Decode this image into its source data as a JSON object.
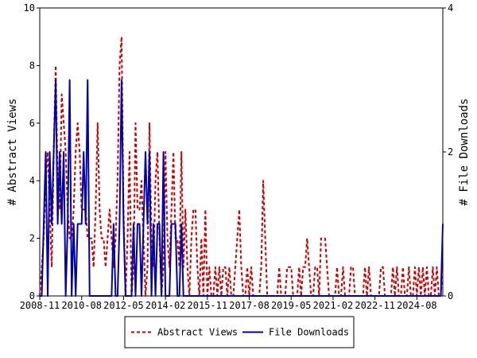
{
  "chart_data": {
    "type": "line",
    "x": [
      "2008-11",
      "2008-12",
      "2009-01",
      "2009-02",
      "2009-03",
      "2009-04",
      "2009-05",
      "2009-06",
      "2009-07",
      "2009-08",
      "2009-09",
      "2009-10",
      "2009-11",
      "2009-12",
      "2010-01",
      "2010-02",
      "2010-03",
      "2010-04",
      "2010-05",
      "2010-06",
      "2010-07",
      "2010-08",
      "2010-09",
      "2010-10",
      "2010-11",
      "2010-12",
      "2011-01",
      "2011-02",
      "2011-03",
      "2011-04",
      "2011-05",
      "2011-06",
      "2011-07",
      "2011-08",
      "2011-09",
      "2011-10",
      "2011-11",
      "2011-12",
      "2012-01",
      "2012-02",
      "2012-03",
      "2012-04",
      "2012-05",
      "2012-06",
      "2012-07",
      "2012-08",
      "2012-09",
      "2012-10",
      "2012-11",
      "2012-12",
      "2013-01",
      "2013-02",
      "2013-03",
      "2013-04",
      "2013-05",
      "2013-06",
      "2013-07",
      "2013-08",
      "2013-09",
      "2013-10",
      "2013-11",
      "2013-12",
      "2014-01",
      "2014-02",
      "2014-03",
      "2014-04",
      "2014-05",
      "2014-06",
      "2014-07",
      "2014-08",
      "2014-09",
      "2014-10",
      "2014-11",
      "2014-12",
      "2015-01",
      "2015-02",
      "2015-03",
      "2015-04",
      "2015-05",
      "2015-06",
      "2015-07",
      "2015-08",
      "2015-09",
      "2015-10",
      "2015-11",
      "2015-12",
      "2016-01",
      "2016-02",
      "2016-03",
      "2016-04",
      "2016-05",
      "2016-06",
      "2016-07",
      "2016-08",
      "2016-09",
      "2016-10",
      "2016-11",
      "2016-12",
      "2017-01",
      "2017-02",
      "2017-03",
      "2017-04",
      "2017-05",
      "2017-06",
      "2017-07",
      "2017-08",
      "2017-09",
      "2017-10",
      "2017-11",
      "2017-12",
      "2018-01",
      "2018-02",
      "2018-03",
      "2018-04",
      "2018-05",
      "2018-06",
      "2018-07",
      "2018-08",
      "2018-09",
      "2018-10",
      "2018-11",
      "2018-12",
      "2019-01",
      "2019-02",
      "2019-03",
      "2019-04",
      "2019-05",
      "2019-06",
      "2019-07",
      "2019-08",
      "2019-09",
      "2019-10",
      "2019-11",
      "2019-12",
      "2020-01",
      "2020-02",
      "2020-03",
      "2020-04",
      "2020-05",
      "2020-06",
      "2020-07",
      "2020-08",
      "2020-09",
      "2020-10",
      "2020-11",
      "2020-12",
      "2021-01",
      "2021-02",
      "2021-03",
      "2021-04",
      "2021-05",
      "2021-06",
      "2021-07",
      "2021-08",
      "2021-09",
      "2021-10",
      "2021-11",
      "2021-12",
      "2022-01",
      "2022-02",
      "2022-03",
      "2022-04",
      "2022-05",
      "2022-06",
      "2022-07",
      "2022-08",
      "2022-09",
      "2022-10",
      "2022-11",
      "2022-12",
      "2023-01",
      "2023-02",
      "2023-03",
      "2023-04",
      "2023-05",
      "2023-06",
      "2023-07",
      "2023-08",
      "2023-09",
      "2023-10",
      "2023-11",
      "2023-12",
      "2024-01",
      "2024-02",
      "2024-03",
      "2024-04",
      "2024-05",
      "2024-06",
      "2024-07",
      "2024-08",
      "2024-09",
      "2024-10",
      "2024-11",
      "2024-12",
      "2025-01",
      "2025-02",
      "2025-03",
      "2025-04",
      "2025-05",
      "2025-06",
      "2025-07",
      "2025-08",
      "2025-09"
    ],
    "series": [
      {
        "name": "Abstract Views",
        "color": "#cc0000",
        "dash": true,
        "values": [
          0,
          1,
          2,
          4,
          5,
          3,
          1,
          5,
          8,
          4,
          3,
          7,
          6,
          5,
          3,
          2,
          2,
          3,
          5,
          6,
          5,
          3,
          3,
          3,
          2,
          2,
          2,
          1,
          3,
          6,
          3,
          2,
          2,
          1,
          2,
          3,
          2,
          1,
          2,
          4,
          8,
          9,
          3,
          0,
          2,
          5,
          0,
          1,
          6,
          3,
          3,
          4,
          2,
          0,
          1,
          6,
          2,
          1,
          4,
          5,
          2,
          0,
          1,
          5,
          2,
          1,
          3,
          5,
          2,
          2,
          1,
          5,
          1,
          3,
          1,
          0,
          2,
          3,
          3,
          1,
          0,
          2,
          0,
          3,
          0,
          1,
          0,
          0,
          1,
          0,
          1,
          0,
          1,
          1,
          0,
          1,
          0,
          0,
          1,
          2,
          3,
          1,
          0,
          0,
          1,
          0,
          1,
          0,
          0,
          0,
          0,
          1,
          4,
          2,
          0,
          0,
          0,
          0,
          0,
          0,
          1,
          0,
          0,
          0,
          1,
          1,
          1,
          0,
          0,
          0,
          1,
          0,
          1,
          1,
          2,
          1,
          0,
          0,
          1,
          1,
          0,
          2,
          2,
          2,
          1,
          0,
          0,
          0,
          0,
          1,
          0,
          0,
          1,
          0,
          0,
          0,
          1,
          1,
          0,
          0,
          0,
          0,
          0,
          1,
          0,
          1,
          0,
          0,
          0,
          0,
          0,
          1,
          1,
          0,
          0,
          0,
          0,
          1,
          0,
          1,
          0,
          0,
          1,
          0,
          0,
          1,
          0,
          0,
          1,
          0,
          1,
          0,
          1,
          0,
          1,
          0,
          0,
          1,
          0,
          1,
          0,
          0,
          1
        ]
      },
      {
        "name": "File Downloads",
        "color": "#0000aa",
        "axis": "y2",
        "values": [
          0,
          0,
          1,
          2,
          0,
          2,
          1,
          2,
          3,
          1,
          2,
          1,
          2,
          0,
          1,
          3,
          0,
          1,
          0,
          1,
          1,
          1,
          2,
          1,
          3,
          0,
          0,
          0,
          0,
          0,
          0,
          0,
          0,
          0,
          0,
          0,
          0,
          1,
          0,
          0,
          1,
          3,
          1,
          0,
          0,
          0,
          0,
          1,
          0,
          1,
          1,
          0,
          1,
          2,
          1,
          2,
          0,
          1,
          0,
          1,
          1,
          0,
          2,
          0,
          0,
          0,
          1,
          1,
          1,
          0,
          0,
          1,
          0,
          0,
          0,
          0,
          0,
          0,
          0,
          0,
          0,
          0,
          0,
          0,
          0,
          0,
          0,
          0,
          0,
          0,
          0,
          0,
          0,
          0,
          0,
          0,
          0,
          0,
          0,
          0,
          0,
          0,
          0,
          0,
          0,
          0,
          0,
          0,
          0,
          0,
          0,
          0,
          0,
          0,
          0,
          0,
          0,
          0,
          0,
          0,
          0,
          0,
          0,
          0,
          0,
          0,
          0,
          0,
          0,
          0,
          0,
          0,
          0,
          0,
          0,
          0,
          0,
          0,
          0,
          0,
          0,
          0,
          0,
          0,
          0,
          0,
          0,
          0,
          0,
          0,
          0,
          0,
          0,
          0,
          0,
          0,
          0,
          0,
          0,
          0,
          0,
          0,
          0,
          0,
          0,
          0,
          0,
          0,
          0,
          0,
          0,
          0,
          0,
          0,
          0,
          0,
          0,
          0,
          0,
          0,
          0,
          0,
          0,
          0,
          0,
          0,
          0,
          0,
          0,
          0,
          0,
          0,
          0,
          0,
          0,
          0,
          0,
          0,
          0,
          0,
          0,
          0,
          1
        ]
      }
    ],
    "ylabel": "# Abstract Views",
    "y2label": "# File Downloads",
    "ylim": [
      0,
      10
    ],
    "yticks": [
      0,
      2,
      4,
      6,
      8,
      10
    ],
    "y2lim": [
      0,
      4
    ],
    "y2ticks": [
      0,
      2,
      4
    ],
    "xticks": [
      "2008-11",
      "2010-08",
      "2012-05",
      "2014-02",
      "2015-11",
      "2017-08",
      "2019-05",
      "2021-02",
      "2022-11",
      "2024-08"
    ],
    "legend": "bottom"
  }
}
